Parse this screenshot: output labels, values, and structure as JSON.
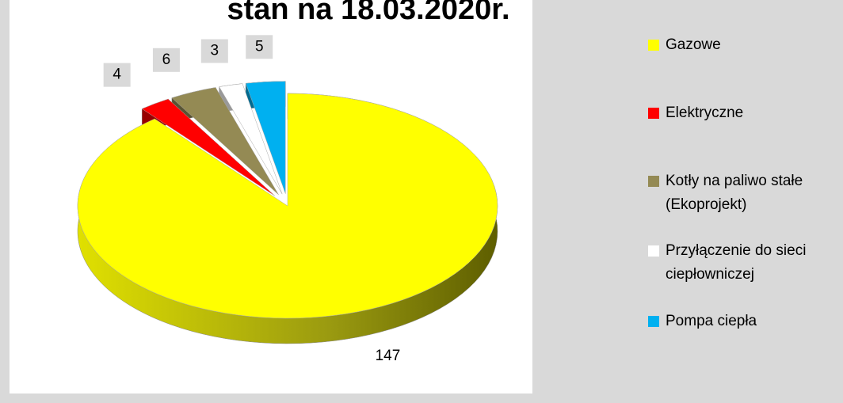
{
  "chart_data": {
    "type": "pie",
    "title": "stan na 18.03.2020r.",
    "categories": [
      "Gazowe",
      "Elektryczne",
      "Kotły na paliwo stałe (Ekoprojekt)",
      "Przyłączenie do sieci ciepłowniczej",
      "Pompa ciepła"
    ],
    "values": [
      147,
      4,
      6,
      3,
      5
    ],
    "colors": [
      "#ffff00",
      "#ff0000",
      "#948a54",
      "#ffffff",
      "#00b0f0"
    ],
    "legend": "right"
  }
}
